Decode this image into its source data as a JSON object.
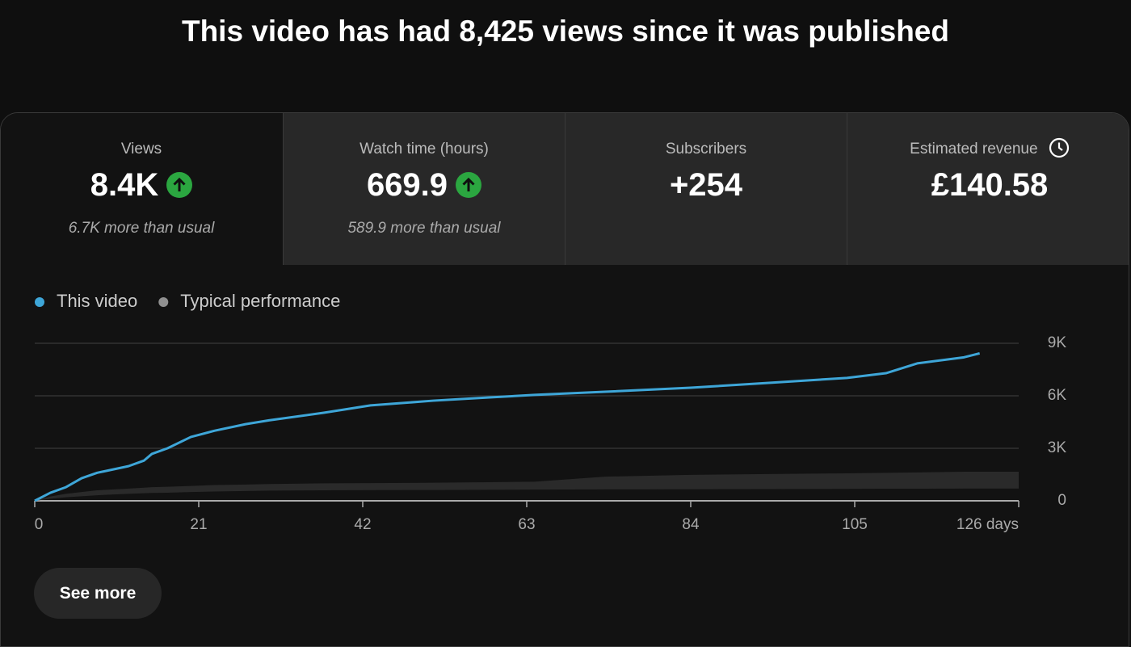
{
  "header": {
    "title": "This video has had 8,425 views since it was published"
  },
  "cards": [
    {
      "label": "Views",
      "value": "8.4K",
      "note": "6.7K more than usual"
    },
    {
      "label": "Watch time (hours)",
      "value": "669.9",
      "note": "589.9 more than usual"
    },
    {
      "label": "Subscribers",
      "value": "+254"
    },
    {
      "label": "Estimated revenue",
      "value": "£140.58"
    }
  ],
  "chart_data": {
    "type": "line",
    "x": [
      0,
      2,
      4,
      6,
      8,
      12,
      14,
      15,
      17,
      20,
      23,
      27,
      30,
      37,
      43,
      51,
      58,
      64,
      73,
      84,
      94,
      104,
      109,
      113,
      119,
      121,
      126
    ],
    "series": [
      {
        "name": "This video",
        "color": "#3ea6d8",
        "values": [
          0,
          460,
          780,
          1290,
          1600,
          1980,
          2300,
          2680,
          3000,
          3650,
          4000,
          4380,
          4600,
          5030,
          5450,
          5720,
          5900,
          6050,
          6230,
          6460,
          6740,
          7020,
          7290,
          7850,
          8200,
          8425,
          null
        ]
      },
      {
        "name": "Typical performance",
        "color": "#909090",
        "fill": "#2a2a2a",
        "values": [
          0,
          250,
          400,
          500,
          600,
          700,
          750,
          780,
          800,
          850,
          900,
          930,
          960,
          1000,
          1010,
          1030,
          1060,
          1090,
          1380,
          1480,
          1530,
          1570,
          1600,
          1620,
          1660,
          1660,
          1660
        ],
        "lower": [
          0,
          120,
          200,
          260,
          320,
          400,
          430,
          450,
          460,
          500,
          530,
          560,
          580,
          600,
          610,
          620,
          630,
          640,
          650,
          660,
          670,
          680,
          690,
          690,
          700,
          700,
          700
        ]
      }
    ],
    "xlim": [
      0,
      126
    ],
    "xticks": [
      0,
      21,
      42,
      63,
      84,
      105,
      {
        "value": 126,
        "label": "126 days"
      }
    ],
    "ylim": [
      0,
      9000
    ],
    "yticks": [
      0,
      {
        "value": 3000,
        "label": "3K"
      },
      {
        "value": 6000,
        "label": "6K"
      },
      {
        "value": 9000,
        "label": "9K"
      }
    ],
    "grid": true
  },
  "button": "See more"
}
